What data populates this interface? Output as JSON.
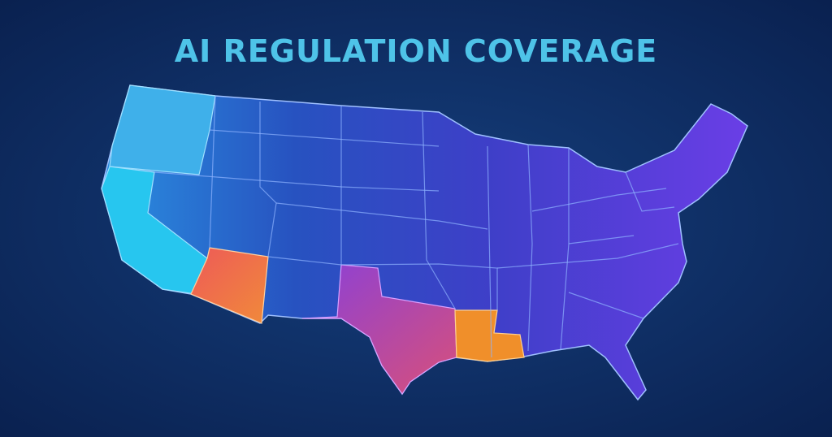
{
  "title": "AI REGULATION COVERAGE"
}
